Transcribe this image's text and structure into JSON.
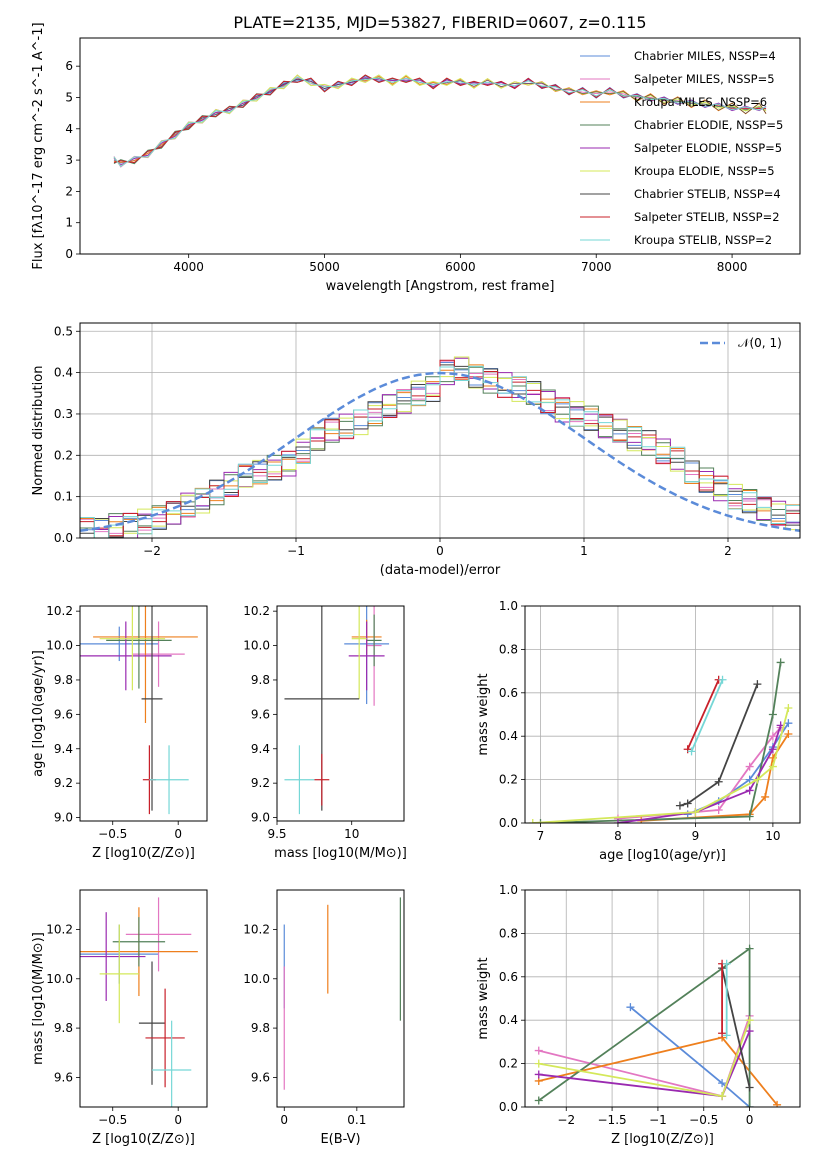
{
  "figure": {
    "title": "PLATE=2135, MJD=53827, FIBERID=0607, z=0.115"
  },
  "series_labels": [
    {
      "name": "Chabrier MILES, N$_{SSP}$=4",
      "color": "#5b8bd9"
    },
    {
      "name": "Salpeter MILES, N$_{SSP}$=5",
      "color": "#e377c2"
    },
    {
      "name": "Kroupa MILES, N$_{SSP}$=6",
      "color": "#ee7f1d"
    },
    {
      "name": "Chabrier ELODIE, N$_{SSP}$=5",
      "color": "#53815a"
    },
    {
      "name": "Salpeter ELODIE, N$_{SSP}$=5",
      "color": "#9a2ab0"
    },
    {
      "name": "Kroupa ELODIE, N$_{SSP}$=5",
      "color": "#d4e85a"
    },
    {
      "name": "Chabrier STELIB, N$_{SSP}$=4",
      "color": "#444444"
    },
    {
      "name": "Salpeter STELIB, N$_{SSP}$=2",
      "color": "#c8202a"
    },
    {
      "name": "Kroupa STELIB, N$_{SSP}$=2",
      "color": "#76d7d6"
    }
  ],
  "chart_data": [
    {
      "id": "spectrum",
      "type": "line",
      "xlabel": "wavelength [Angstrom, rest frame]",
      "ylabel": "Flux [f$_\\lambda$10$^{-17}$ erg cm$^{-2}$ s$^{-1}$ A$^{-1}$]",
      "xlim": [
        3200,
        8500
      ],
      "ylim": [
        0,
        6.9
      ],
      "xticks": [
        4000,
        5000,
        6000,
        7000,
        8000
      ],
      "yticks": [
        0,
        1,
        2,
        3,
        4,
        5,
        6
      ],
      "legend": "top-right",
      "data": {
        "x": [
          3450,
          3500,
          3600,
          3700,
          3800,
          3900,
          4000,
          4100,
          4200,
          4300,
          4400,
          4500,
          4600,
          4700,
          4800,
          4900,
          5000,
          5100,
          5200,
          5300,
          5400,
          5500,
          5600,
          5700,
          5800,
          5900,
          6000,
          6100,
          6200,
          6300,
          6400,
          6500,
          6600,
          6700,
          6800,
          6900,
          7000,
          7100,
          7200,
          7300,
          7400,
          7500,
          7600,
          7700,
          7800,
          7900,
          8000,
          8100,
          8200,
          8250
        ],
        "y": [
          3.0,
          2.9,
          3.0,
          3.2,
          3.5,
          3.8,
          4.1,
          4.3,
          4.5,
          4.6,
          4.8,
          5.0,
          5.2,
          5.4,
          5.6,
          5.5,
          5.3,
          5.4,
          5.5,
          5.6,
          5.6,
          5.5,
          5.6,
          5.5,
          5.4,
          5.5,
          5.5,
          5.4,
          5.5,
          5.4,
          5.4,
          5.5,
          5.4,
          5.3,
          5.2,
          5.2,
          5.1,
          5.2,
          5.1,
          5.0,
          5.0,
          4.9,
          4.9,
          4.8,
          4.8,
          4.7,
          4.7,
          4.6,
          4.7,
          4.6
        ]
      }
    },
    {
      "id": "residuals",
      "type": "line",
      "xlabel": "(data-model)/error",
      "ylabel": "Normed distribution",
      "xlim": [
        -2.5,
        2.5
      ],
      "ylim": [
        0,
        0.52
      ],
      "xticks": [
        -2,
        -1,
        0,
        1,
        2
      ],
      "yticks": [
        0.0,
        0.1,
        0.2,
        0.3,
        0.4,
        0.5
      ],
      "legend": "top-right",
      "legend_label": "$\\mathcal{N}(0,1)$",
      "grid": true,
      "data": {
        "bin_edges_from": -2.5,
        "bin_width": 0.1,
        "hist": [
          0.02,
          0.02,
          0.03,
          0.03,
          0.04,
          0.05,
          0.06,
          0.08,
          0.09,
          0.11,
          0.13,
          0.15,
          0.16,
          0.17,
          0.18,
          0.21,
          0.24,
          0.26,
          0.27,
          0.28,
          0.3,
          0.32,
          0.33,
          0.35,
          0.36,
          0.4,
          0.41,
          0.39,
          0.38,
          0.37,
          0.36,
          0.35,
          0.33,
          0.31,
          0.3,
          0.29,
          0.27,
          0.26,
          0.24,
          0.23,
          0.21,
          0.19,
          0.16,
          0.14,
          0.12,
          0.1,
          0.09,
          0.07,
          0.06,
          0.05
        ]
      }
    },
    {
      "id": "age_vs_Z",
      "type": "scatter",
      "xlabel": "Z [log$_{10}$($Z/Z_\\odot$)]",
      "ylabel": "age  [log$_{10}$($age/yr$)]",
      "xlim": [
        -0.75,
        0.22
      ],
      "ylim": [
        8.98,
        10.23
      ],
      "xticks": [
        -0.5,
        0.0
      ],
      "yticks": [
        9.0,
        9.2,
        9.4,
        9.6,
        9.8,
        10.0,
        10.2
      ],
      "data": [
        {
          "x": -0.45,
          "y": 10.01,
          "xerr": 0.3,
          "yerr": 0.1
        },
        {
          "x": -0.15,
          "y": 9.95,
          "xerr": 0.2,
          "yerr": 0.19
        },
        {
          "x": -0.25,
          "y": 10.05,
          "xerr": 0.4,
          "yerr": 0.5
        },
        {
          "x": -0.3,
          "y": 10.03,
          "xerr": 0.25,
          "yerr": 0.28
        },
        {
          "x": -0.4,
          "y": 9.94,
          "xerr": 0.35,
          "yerr": 0.2
        },
        {
          "x": -0.35,
          "y": 10.04,
          "xerr": 0.25,
          "yerr": 0.3
        },
        {
          "x": -0.2,
          "y": 9.69,
          "xerr": 0.08,
          "yerr": 0.65
        },
        {
          "x": -0.22,
          "y": 9.22,
          "xerr": 0.05,
          "yerr": 0.2
        },
        {
          "x": -0.07,
          "y": 9.22,
          "xerr": 0.15,
          "yerr": 0.2
        }
      ]
    },
    {
      "id": "age_vs_mass",
      "type": "scatter",
      "xlabel": "mass [log$_{10}$($M/M_\\odot$)]",
      "ylabel": "",
      "xlim": [
        9.5,
        10.35
      ],
      "ylim": [
        8.98,
        10.23
      ],
      "xticks": [
        9.5,
        10.0
      ],
      "yticks": [
        9.0,
        9.2,
        9.4,
        9.6,
        9.8,
        10.0,
        10.2
      ],
      "data": [
        {
          "x": 10.1,
          "y": 10.01,
          "xerr": 0.15,
          "yerr": 0.35
        },
        {
          "x": 10.15,
          "y": 10.0,
          "xerr": 0.05,
          "yerr": 0.35
        },
        {
          "x": 10.1,
          "y": 10.05,
          "xerr": 0.1,
          "yerr": 0.1
        },
        {
          "x": 10.15,
          "y": 10.03,
          "xerr": 0.05,
          "yerr": 0.15
        },
        {
          "x": 10.1,
          "y": 9.94,
          "xerr": 0.12,
          "yerr": 0.2
        },
        {
          "x": 10.05,
          "y": 10.04,
          "xerr": 0.05,
          "yerr": 0.35
        },
        {
          "x": 9.8,
          "y": 9.69,
          "xerr": 0.25,
          "yerr": 0.65
        },
        {
          "x": 9.8,
          "y": 9.22,
          "xerr": 0.05,
          "yerr": 0.15
        },
        {
          "x": 9.65,
          "y": 9.22,
          "xerr": 0.1,
          "yerr": 0.2
        }
      ]
    },
    {
      "id": "massweight_vs_age",
      "type": "line",
      "xlabel": "age  [log$_{10}$($age/yr$)]",
      "ylabel": "mass weight",
      "xlim": [
        6.8,
        10.35
      ],
      "ylim": [
        0.0,
        1.0
      ],
      "xticks": [
        7,
        8,
        9,
        10
      ],
      "yticks": [
        0.0,
        0.2,
        0.4,
        0.6,
        0.8,
        1.0
      ],
      "grid": true,
      "data": [
        {
          "x": [
            8.9,
            9.3,
            9.7,
            10.0,
            10.2
          ],
          "y": [
            0.04,
            0.1,
            0.2,
            0.35,
            0.46
          ]
        },
        {
          "x": [
            8.0,
            9.3,
            9.7,
            10.0,
            10.1
          ],
          "y": [
            0.02,
            0.06,
            0.26,
            0.4,
            0.44
          ]
        },
        {
          "x": [
            8.3,
            9.7,
            9.9,
            10.0,
            10.2
          ],
          "y": [
            0.01,
            0.04,
            0.12,
            0.3,
            0.41
          ]
        },
        {
          "x": [
            7.0,
            9.7,
            10.0,
            10.1
          ],
          "y": [
            0.0,
            0.03,
            0.5,
            0.74
          ]
        },
        {
          "x": [
            8.0,
            9.0,
            9.7,
            10.0,
            10.1
          ],
          "y": [
            0.0,
            0.05,
            0.15,
            0.34,
            0.45
          ]
        },
        {
          "x": [
            6.9,
            9.0,
            9.8,
            10.0,
            10.2
          ],
          "y": [
            0.0,
            0.05,
            0.2,
            0.26,
            0.53
          ]
        },
        {
          "x": [
            8.8,
            8.9,
            9.3,
            9.8
          ],
          "y": [
            0.08,
            0.09,
            0.19,
            0.64
          ]
        },
        {
          "x": [
            8.9,
            9.3
          ],
          "y": [
            0.34,
            0.66
          ]
        },
        {
          "x": [
            8.95,
            9.35
          ],
          "y": [
            0.33,
            0.66
          ]
        }
      ]
    },
    {
      "id": "mass_vs_Z",
      "type": "scatter",
      "xlabel": "Z [log$_{10}$($Z/Z_\\odot$)]",
      "ylabel": "mass [log$_{10}$($M/M_\\odot$)]",
      "xlim": [
        -0.75,
        0.22
      ],
      "ylim": [
        9.48,
        10.36
      ],
      "xticks": [
        -0.5,
        0.0
      ],
      "yticks": [
        9.6,
        9.8,
        10.0,
        10.2
      ],
      "data": [
        {
          "x": -0.45,
          "y": 10.1,
          "xerr": 0.3,
          "yerr": 0.12
        },
        {
          "x": -0.15,
          "y": 10.18,
          "xerr": 0.25,
          "yerr": 0.15
        },
        {
          "x": -0.3,
          "y": 10.11,
          "xerr": 0.45,
          "yerr": 0.18
        },
        {
          "x": -0.3,
          "y": 10.15,
          "xerr": 0.2,
          "yerr": 0.1
        },
        {
          "x": -0.55,
          "y": 10.09,
          "xerr": 0.3,
          "yerr": 0.18
        },
        {
          "x": -0.45,
          "y": 10.02,
          "xerr": 0.15,
          "yerr": 0.2
        },
        {
          "x": -0.2,
          "y": 9.82,
          "xerr": 0.1,
          "yerr": 0.25
        },
        {
          "x": -0.1,
          "y": 9.76,
          "xerr": 0.15,
          "yerr": 0.2
        },
        {
          "x": -0.05,
          "y": 9.63,
          "xerr": 0.15,
          "yerr": 0.2
        }
      ]
    },
    {
      "id": "mass_vs_ebv",
      "type": "scatter",
      "xlabel": "E(B-V)",
      "ylabel": "",
      "xlim": [
        -0.01,
        0.165
      ],
      "ylim": [
        9.48,
        10.36
      ],
      "xticks": [
        0.0,
        0.1
      ],
      "yticks": [
        9.6,
        9.8,
        10.0,
        10.2
      ],
      "data": [
        {
          "x": 0.0,
          "y": 10.05,
          "yerr": 0.17
        },
        {
          "x": 0.0,
          "y": 9.8,
          "yerr": 0.25
        },
        {
          "x": 0.06,
          "y": 10.12,
          "yerr": 0.18
        },
        {
          "x": 0.16,
          "y": 10.08,
          "yerr": 0.25
        }
      ]
    },
    {
      "id": "massweight_vs_Z",
      "type": "line",
      "xlabel": "Z [log$_{10}$($Z/Z_\\odot$)]",
      "ylabel": "mass weight",
      "xlim": [
        -2.45,
        0.55
      ],
      "ylim": [
        0.0,
        1.0
      ],
      "xticks": [
        -2.0,
        -1.5,
        -1.0,
        -0.5,
        0.0
      ],
      "yticks": [
        0.0,
        0.2,
        0.4,
        0.6,
        0.8,
        1.0
      ],
      "grid": true,
      "data": [
        {
          "x": [
            -1.3,
            -0.3,
            0.0
          ],
          "y": [
            0.46,
            0.11,
            0.0
          ]
        },
        {
          "x": [
            -2.3,
            -0.3,
            0.0
          ],
          "y": [
            0.26,
            0.05,
            0.42
          ]
        },
        {
          "x": [
            -2.3,
            -0.3,
            0.3
          ],
          "y": [
            0.12,
            0.32,
            0.01
          ]
        },
        {
          "x": [
            -2.3,
            0.0,
            0.0
          ],
          "y": [
            0.03,
            0.73,
            0.0
          ]
        },
        {
          "x": [
            -2.3,
            -0.3,
            0.0
          ],
          "y": [
            0.15,
            0.05,
            0.35
          ]
        },
        {
          "x": [
            -2.3,
            -0.3,
            0.0
          ],
          "y": [
            0.2,
            0.05,
            0.4
          ]
        },
        {
          "x": [
            -0.3,
            0.0
          ],
          "y": [
            0.64,
            0.09
          ]
        },
        {
          "x": [
            -0.3,
            -0.3
          ],
          "y": [
            0.34,
            0.66
          ]
        },
        {
          "x": [
            -0.25,
            -0.25
          ],
          "y": [
            0.33,
            0.66
          ]
        }
      ]
    }
  ]
}
